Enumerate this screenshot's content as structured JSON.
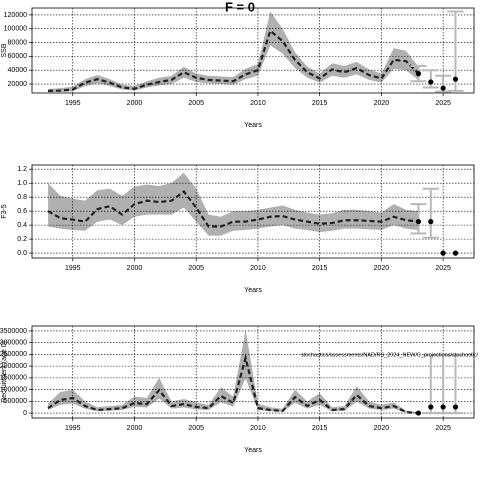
{
  "chart_data": [
    {
      "type": "line",
      "title": "F = 0",
      "x_label": "Years",
      "y_label": "SSB",
      "x": [
        1993,
        1994,
        1995,
        1996,
        1997,
        1998,
        1999,
        2000,
        2001,
        2002,
        2003,
        2004,
        2005,
        2006,
        2007,
        2008,
        2009,
        2010,
        2011,
        2012,
        2013,
        2014,
        2015,
        2016,
        2017,
        2018,
        2019,
        2020,
        2021,
        2022,
        2023
      ],
      "values": [
        10000,
        10500,
        12000,
        22000,
        27000,
        22000,
        15000,
        13000,
        19000,
        23000,
        26000,
        37000,
        29000,
        26000,
        25000,
        24000,
        34000,
        40000,
        97000,
        82000,
        55000,
        37000,
        28000,
        41000,
        37000,
        43000,
        33000,
        28000,
        55000,
        53000,
        35000
      ],
      "band_lower": [
        8000,
        8500,
        9500,
        17000,
        21000,
        17000,
        12000,
        10500,
        15000,
        18000,
        20000,
        29000,
        23000,
        21000,
        20000,
        19000,
        27000,
        32000,
        76000,
        64000,
        43000,
        29000,
        22000,
        32000,
        29000,
        34000,
        26000,
        22000,
        42000,
        40000,
        26000
      ],
      "band_upper": [
        13000,
        14000,
        16000,
        27000,
        33000,
        27000,
        19000,
        17000,
        24000,
        29000,
        32000,
        45000,
        35000,
        32000,
        31000,
        30000,
        42000,
        49000,
        125000,
        100000,
        66000,
        45000,
        35000,
        50000,
        46000,
        52000,
        41000,
        35000,
        72000,
        68000,
        45000
      ],
      "projection": {
        "x": [
          2023,
          2024,
          2025,
          2026
        ],
        "values": [
          35000,
          23000,
          14000,
          27000
        ],
        "lower": [
          24000,
          15000,
          9000,
          10000
        ],
        "upper": [
          46000,
          40000,
          32000,
          125000
        ]
      },
      "xlim": [
        1991.7,
        2027.5
      ],
      "xticks": [
        1995,
        2000,
        2005,
        2010,
        2015,
        2020,
        2025
      ],
      "ylim": [
        7000,
        130000
      ],
      "yticks": [
        20000,
        40000,
        60000,
        80000,
        100000,
        120000
      ],
      "grid": true,
      "line_color": "#222222",
      "band_color": "#b0b0b0",
      "errorbar_color": "#b8b8b8",
      "point_color": "#000000"
    },
    {
      "type": "line",
      "x_label": "Years",
      "y_label": "F3-5",
      "x": [
        1993,
        1994,
        1995,
        1996,
        1997,
        1998,
        1999,
        2000,
        2001,
        2002,
        2003,
        2004,
        2005,
        2006,
        2007,
        2008,
        2009,
        2010,
        2011,
        2012,
        2013,
        2014,
        2015,
        2016,
        2017,
        2018,
        2019,
        2020,
        2021,
        2022,
        2023
      ],
      "values": [
        0.6,
        0.5,
        0.48,
        0.45,
        0.63,
        0.67,
        0.55,
        0.7,
        0.75,
        0.73,
        0.75,
        0.88,
        0.65,
        0.38,
        0.38,
        0.45,
        0.45,
        0.48,
        0.52,
        0.53,
        0.48,
        0.45,
        0.42,
        0.43,
        0.47,
        0.47,
        0.46,
        0.45,
        0.52,
        0.47,
        0.45
      ],
      "band_lower": [
        0.38,
        0.35,
        0.33,
        0.32,
        0.45,
        0.48,
        0.4,
        0.52,
        0.55,
        0.55,
        0.55,
        0.65,
        0.45,
        0.25,
        0.25,
        0.32,
        0.33,
        0.35,
        0.38,
        0.4,
        0.35,
        0.33,
        0.3,
        0.32,
        0.35,
        0.35,
        0.34,
        0.33,
        0.4,
        0.35,
        0.33
      ],
      "band_upper": [
        1.0,
        0.82,
        0.78,
        0.75,
        0.9,
        0.92,
        0.82,
        0.95,
        0.98,
        0.96,
        1.0,
        1.15,
        0.92,
        0.55,
        0.52,
        0.6,
        0.6,
        0.62,
        0.65,
        0.68,
        0.62,
        0.58,
        0.55,
        0.57,
        0.62,
        0.62,
        0.6,
        0.58,
        0.7,
        0.62,
        0.6
      ],
      "projection": {
        "x": [
          2023,
          2024,
          2025,
          2026
        ],
        "values": [
          0.45,
          0.45,
          0,
          0
        ],
        "lower": [
          0.28,
          0.22,
          null,
          null
        ],
        "upper": [
          0.7,
          0.92,
          null,
          null
        ]
      },
      "xlim": [
        1991.7,
        2027.5
      ],
      "xticks": [
        1995,
        2000,
        2005,
        2010,
        2015,
        2020,
        2025
      ],
      "ylim": [
        -0.07,
        1.26
      ],
      "yticks": [
        {
          "value": 0,
          "label": "0.0"
        },
        0.2,
        0.4,
        0.6,
        0.8,
        {
          "value": 1,
          "label": "1.0"
        },
        1.2
      ],
      "grid": true,
      "line_color": "#222222",
      "band_color": "#b0b0b0",
      "errorbar_color": "#b8b8b8",
      "point_color": "#000000"
    },
    {
      "type": "line",
      "x_label": "Years",
      "y_label": "Recruitment (age 0)",
      "annotation": "stochastics/assessments/NAD/RS_2024_NEW/C_projections/stochastic/",
      "x": [
        1993,
        1994,
        1995,
        1996,
        1997,
        1998,
        1999,
        2000,
        2001,
        2002,
        2003,
        2004,
        2005,
        2006,
        2007,
        2008,
        2009,
        2010,
        2011,
        2012,
        2013,
        2014,
        2015,
        2016,
        2017,
        2018,
        2019,
        2020,
        2021,
        2022,
        2023
      ],
      "values": [
        210000,
        560000,
        640000,
        300000,
        130000,
        170000,
        210000,
        430000,
        380000,
        980000,
        300000,
        380000,
        260000,
        210000,
        730000,
        430000,
        2350000,
        210000,
        130000,
        90000,
        680000,
        300000,
        560000,
        130000,
        170000,
        770000,
        300000,
        210000,
        300000,
        40000,
        0
      ],
      "band_lower": [
        130000,
        350000,
        400000,
        190000,
        80000,
        100000,
        130000,
        270000,
        240000,
        620000,
        190000,
        240000,
        160000,
        130000,
        460000,
        270000,
        1480000,
        130000,
        80000,
        55000,
        430000,
        190000,
        350000,
        80000,
        100000,
        480000,
        190000,
        130000,
        190000,
        20000,
        0
      ],
      "band_upper": [
        400000,
        900000,
        1000000,
        500000,
        250000,
        300000,
        350000,
        700000,
        650000,
        1500000,
        500000,
        600000,
        450000,
        350000,
        1100000,
        700000,
        3550000,
        400000,
        250000,
        180000,
        1000000,
        500000,
        850000,
        250000,
        300000,
        1150000,
        500000,
        350000,
        450000,
        100000,
        20000
      ],
      "projection": {
        "x": [
          2023,
          2024,
          2025,
          2026
        ],
        "values": [
          0,
          260000,
          260000,
          260000
        ],
        "lower": [
          null,
          0,
          0,
          0
        ],
        "upper": [
          null,
          2480000,
          2480000,
          2480000
        ]
      },
      "xlim": [
        1991.7,
        2027.5
      ],
      "xticks": [
        1995,
        2000,
        2005,
        2010,
        2015,
        2020,
        2025
      ],
      "ylim": [
        -210000,
        3710000
      ],
      "yticks": [
        0,
        500000,
        1000000,
        1500000,
        2000000,
        2500000,
        3000000,
        3500000
      ],
      "grid": true,
      "line_color": "#222222",
      "band_color": "#b0b0b0",
      "errorbar_color": "#b8b8b8",
      "point_color": "#000000"
    }
  ]
}
